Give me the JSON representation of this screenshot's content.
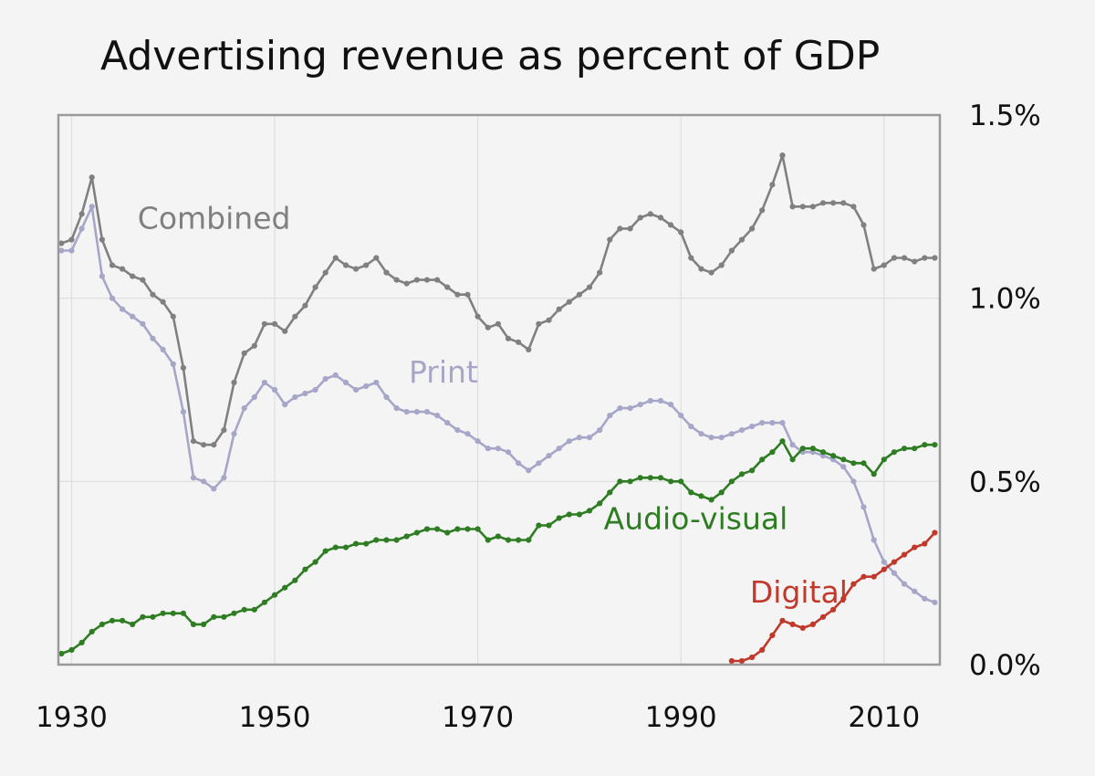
{
  "chart_data": {
    "type": "line",
    "title": "Advertising revenue as percent of GDP",
    "xlabel": "",
    "ylabel": "",
    "xlim": [
      1928.7,
      2015.5
    ],
    "ylim": [
      0,
      1.5
    ],
    "x_ticks": [
      1930,
      1950,
      1970,
      1990,
      2010
    ],
    "y_ticks": [
      {
        "value": 0,
        "label": "0.0%"
      },
      {
        "value": 0.5,
        "label": "0.5%"
      },
      {
        "value": 1.0,
        "label": "1.0%"
      },
      {
        "value": 1.5,
        "label": "1.5%"
      }
    ],
    "y_axis_side": "right",
    "grid": "horizontal",
    "legend": "inline labels",
    "series": [
      {
        "name": "Combined",
        "color": "#808080",
        "x": [
          1929,
          1930,
          1931,
          1932,
          1933,
          1934,
          1935,
          1936,
          1937,
          1938,
          1939,
          1940,
          1941,
          1942,
          1943,
          1944,
          1945,
          1946,
          1947,
          1948,
          1949,
          1950,
          1951,
          1952,
          1953,
          1954,
          1955,
          1956,
          1957,
          1958,
          1959,
          1960,
          1961,
          1962,
          1963,
          1964,
          1965,
          1966,
          1967,
          1968,
          1969,
          1970,
          1971,
          1972,
          1973,
          1974,
          1975,
          1976,
          1977,
          1978,
          1979,
          1980,
          1981,
          1982,
          1983,
          1984,
          1985,
          1986,
          1987,
          1988,
          1989,
          1990,
          1991,
          1992,
          1993,
          1994,
          1995,
          1996,
          1997,
          1998,
          1999,
          2000,
          2001,
          2002,
          2003,
          2004,
          2005,
          2006,
          2007,
          2008,
          2009,
          2010,
          2011,
          2012,
          2013,
          2014,
          2015
        ],
        "y": [
          1.15,
          1.16,
          1.23,
          1.33,
          1.16,
          1.09,
          1.08,
          1.06,
          1.05,
          1.01,
          0.99,
          0.95,
          0.81,
          0.61,
          0.6,
          0.6,
          0.64,
          0.77,
          0.85,
          0.87,
          0.93,
          0.93,
          0.91,
          0.95,
          0.98,
          1.03,
          1.07,
          1.11,
          1.09,
          1.08,
          1.09,
          1.11,
          1.07,
          1.05,
          1.04,
          1.05,
          1.05,
          1.05,
          1.03,
          1.01,
          1.01,
          0.95,
          0.92,
          0.93,
          0.89,
          0.88,
          0.86,
          0.93,
          0.94,
          0.97,
          0.99,
          1.01,
          1.03,
          1.07,
          1.16,
          1.19,
          1.19,
          1.22,
          1.23,
          1.22,
          1.2,
          1.18,
          1.11,
          1.08,
          1.07,
          1.09,
          1.13,
          1.16,
          1.19,
          1.24,
          1.31,
          1.39,
          1.25,
          1.25,
          1.25,
          1.26,
          1.26,
          1.26,
          1.25,
          1.2,
          1.08,
          1.09,
          1.11,
          1.11,
          1.1,
          1.11,
          1.11
        ]
      },
      {
        "name": "Print",
        "color": "#a6a6c8",
        "x": [
          1929,
          1930,
          1931,
          1932,
          1933,
          1934,
          1935,
          1936,
          1937,
          1938,
          1939,
          1940,
          1941,
          1942,
          1943,
          1944,
          1945,
          1946,
          1947,
          1948,
          1949,
          1950,
          1951,
          1952,
          1953,
          1954,
          1955,
          1956,
          1957,
          1958,
          1959,
          1960,
          1961,
          1962,
          1963,
          1964,
          1965,
          1966,
          1967,
          1968,
          1969,
          1970,
          1971,
          1972,
          1973,
          1974,
          1975,
          1976,
          1977,
          1978,
          1979,
          1980,
          1981,
          1982,
          1983,
          1984,
          1985,
          1986,
          1987,
          1988,
          1989,
          1990,
          1991,
          1992,
          1993,
          1994,
          1995,
          1996,
          1997,
          1998,
          1999,
          2000,
          2001,
          2002,
          2003,
          2004,
          2005,
          2006,
          2007,
          2008,
          2009,
          2010,
          2011,
          2012,
          2013,
          2014,
          2015
        ],
        "y": [
          1.13,
          1.13,
          1.19,
          1.25,
          1.06,
          1.0,
          0.97,
          0.95,
          0.93,
          0.89,
          0.86,
          0.82,
          0.69,
          0.51,
          0.5,
          0.48,
          0.51,
          0.63,
          0.7,
          0.73,
          0.77,
          0.75,
          0.71,
          0.73,
          0.74,
          0.75,
          0.78,
          0.79,
          0.77,
          0.75,
          0.76,
          0.77,
          0.73,
          0.7,
          0.69,
          0.69,
          0.69,
          0.68,
          0.66,
          0.64,
          0.63,
          0.61,
          0.59,
          0.59,
          0.58,
          0.55,
          0.53,
          0.55,
          0.57,
          0.59,
          0.61,
          0.62,
          0.62,
          0.64,
          0.68,
          0.7,
          0.7,
          0.71,
          0.72,
          0.72,
          0.71,
          0.68,
          0.65,
          0.63,
          0.62,
          0.62,
          0.63,
          0.64,
          0.65,
          0.66,
          0.66,
          0.66,
          0.6,
          0.58,
          0.58,
          0.57,
          0.56,
          0.54,
          0.5,
          0.43,
          0.34,
          0.28,
          0.25,
          0.22,
          0.2,
          0.18,
          0.17
        ]
      },
      {
        "name": "Audio-visual",
        "color": "#2e7d23",
        "x": [
          1929,
          1930,
          1931,
          1932,
          1933,
          1934,
          1935,
          1936,
          1937,
          1938,
          1939,
          1940,
          1941,
          1942,
          1943,
          1944,
          1945,
          1946,
          1947,
          1948,
          1949,
          1950,
          1951,
          1952,
          1953,
          1954,
          1955,
          1956,
          1957,
          1958,
          1959,
          1960,
          1961,
          1962,
          1963,
          1964,
          1965,
          1966,
          1967,
          1968,
          1969,
          1970,
          1971,
          1972,
          1973,
          1974,
          1975,
          1976,
          1977,
          1978,
          1979,
          1980,
          1981,
          1982,
          1983,
          1984,
          1985,
          1986,
          1987,
          1988,
          1989,
          1990,
          1991,
          1992,
          1993,
          1994,
          1995,
          1996,
          1997,
          1998,
          1999,
          2000,
          2001,
          2002,
          2003,
          2004,
          2005,
          2006,
          2007,
          2008,
          2009,
          2010,
          2011,
          2012,
          2013,
          2014,
          2015
        ],
        "y": [
          0.03,
          0.04,
          0.06,
          0.09,
          0.11,
          0.12,
          0.12,
          0.11,
          0.13,
          0.13,
          0.14,
          0.14,
          0.14,
          0.11,
          0.11,
          0.13,
          0.13,
          0.14,
          0.15,
          0.15,
          0.17,
          0.19,
          0.21,
          0.23,
          0.26,
          0.28,
          0.31,
          0.32,
          0.32,
          0.33,
          0.33,
          0.34,
          0.34,
          0.34,
          0.35,
          0.36,
          0.37,
          0.37,
          0.36,
          0.37,
          0.37,
          0.37,
          0.34,
          0.35,
          0.34,
          0.34,
          0.34,
          0.38,
          0.38,
          0.4,
          0.41,
          0.41,
          0.42,
          0.44,
          0.47,
          0.5,
          0.5,
          0.51,
          0.51,
          0.51,
          0.5,
          0.5,
          0.47,
          0.46,
          0.45,
          0.47,
          0.5,
          0.52,
          0.53,
          0.56,
          0.58,
          0.61,
          0.56,
          0.59,
          0.59,
          0.58,
          0.57,
          0.56,
          0.55,
          0.55,
          0.52,
          0.56,
          0.58,
          0.59,
          0.59,
          0.6,
          0.6
        ]
      },
      {
        "name": "Digital",
        "color": "#c0392b",
        "x": [
          1995,
          1996,
          1997,
          1998,
          1999,
          2000,
          2001,
          2002,
          2003,
          2004,
          2005,
          2006,
          2007,
          2008,
          2009,
          2010,
          2011,
          2012,
          2013,
          2014,
          2015
        ],
        "y": [
          0.01,
          0.01,
          0.02,
          0.04,
          0.08,
          0.12,
          0.11,
          0.1,
          0.11,
          0.13,
          0.15,
          0.18,
          0.22,
          0.24,
          0.24,
          0.26,
          0.28,
          0.3,
          0.32,
          0.33,
          0.36
        ]
      }
    ],
    "series_labels": [
      {
        "name": "Combined",
        "at_x": 1936.5,
        "at_y": 1.19
      },
      {
        "name": "Print",
        "at_x": 1963.2,
        "at_y": 0.77
      },
      {
        "name": "Audio-visual",
        "at_x": 1982.4,
        "at_y": 0.37
      },
      {
        "name": "Digital",
        "at_x": 1996.8,
        "at_y": 0.17
      }
    ]
  }
}
